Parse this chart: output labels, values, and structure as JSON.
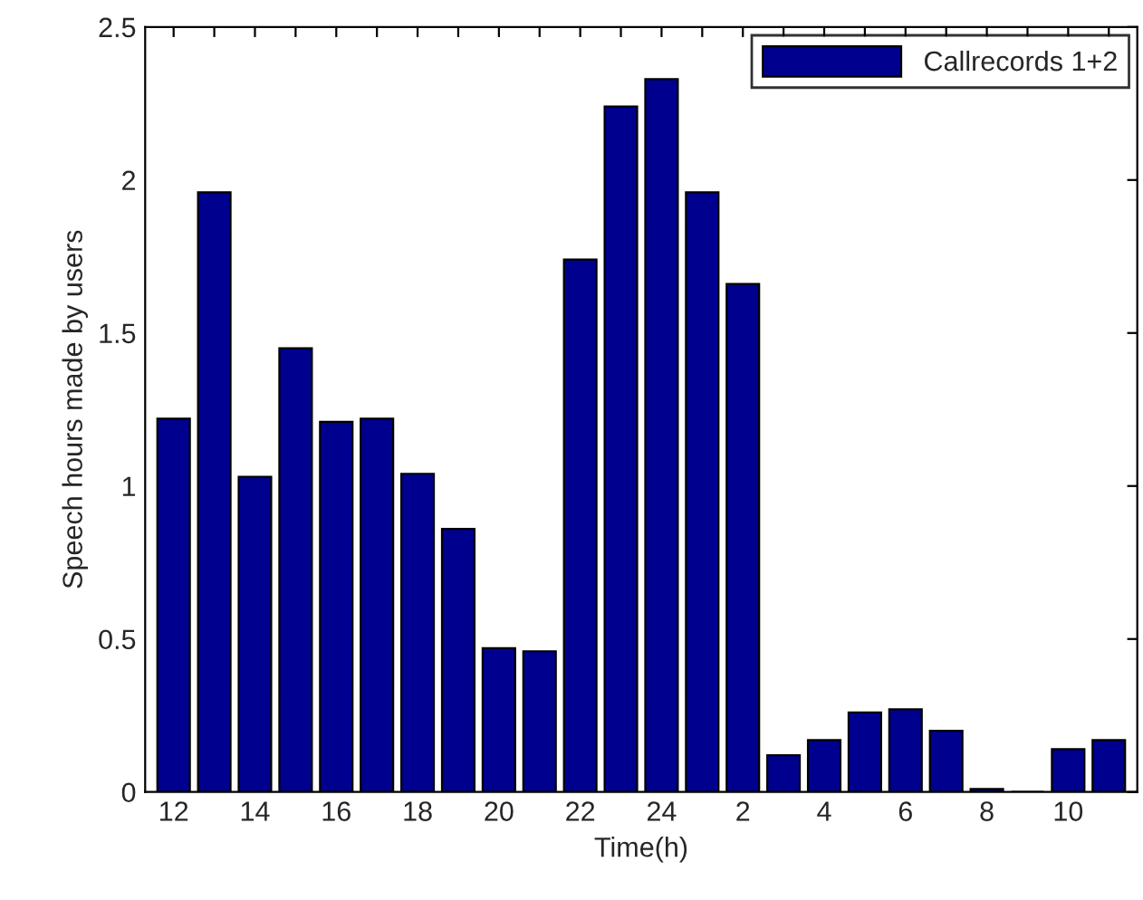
{
  "chart_data": {
    "type": "bar",
    "xlabel": "Time(h)",
    "ylabel": "Speech hours made by users",
    "categories": [
      "12",
      null,
      "14",
      null,
      "16",
      null,
      "18",
      null,
      "20",
      null,
      "22",
      null,
      "24",
      null,
      "2",
      null,
      "4",
      null,
      "6",
      null,
      "8",
      null,
      "10",
      null
    ],
    "series": [
      {
        "name": "Callrecords 1+2",
        "color": "#00008f",
        "values": [
          1.22,
          1.96,
          1.03,
          1.45,
          1.21,
          1.22,
          1.04,
          0.86,
          0.47,
          0.46,
          1.74,
          2.24,
          2.33,
          1.96,
          1.66,
          0.12,
          0.17,
          0.26,
          0.27,
          0.2,
          0.01,
          0,
          0.14,
          0.17
        ]
      }
    ],
    "ylim": [
      0,
      2.5
    ],
    "yticks": [
      0,
      0.5,
      1,
      1.5,
      2,
      2.5
    ],
    "grid": false,
    "legend": "top right"
  }
}
